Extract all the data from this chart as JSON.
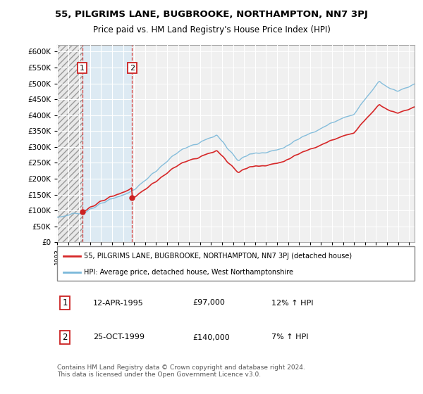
{
  "title": "55, PILGRIMS LANE, BUGBROOKE, NORTHAMPTON, NN7 3PJ",
  "subtitle": "Price paid vs. HM Land Registry's House Price Index (HPI)",
  "legend_line1": "55, PILGRIMS LANE, BUGBROOKE, NORTHAMPTON, NN7 3PJ (detached house)",
  "legend_line2": "HPI: Average price, detached house, West Northamptonshire",
  "footnote": "Contains HM Land Registry data © Crown copyright and database right 2024.\nThis data is licensed under the Open Government Licence v3.0.",
  "transactions": [
    {
      "label": "1",
      "date": "12-APR-1995",
      "price": 97000,
      "hpi_pct": "12%",
      "x": 1995.28
    },
    {
      "label": "2",
      "date": "25-OCT-1999",
      "price": 140000,
      "hpi_pct": "7%",
      "x": 1999.81
    }
  ],
  "hpi_color": "#7ab8d9",
  "price_color": "#d62728",
  "transaction_color": "#cc2222",
  "hatch_region1_start": 1993.0,
  "hatch_region1_end": 1995.28,
  "blue_region_start": 1995.28,
  "blue_region_end": 1999.81,
  "ylim_min": 0,
  "ylim_max": 620000,
  "xlim_min": 1993.0,
  "xlim_max": 2025.5,
  "plot_bg_color": "#f0f0f0",
  "grid_color": "#ffffff",
  "title_fontsize": 9.5,
  "subtitle_fontsize": 8.5
}
